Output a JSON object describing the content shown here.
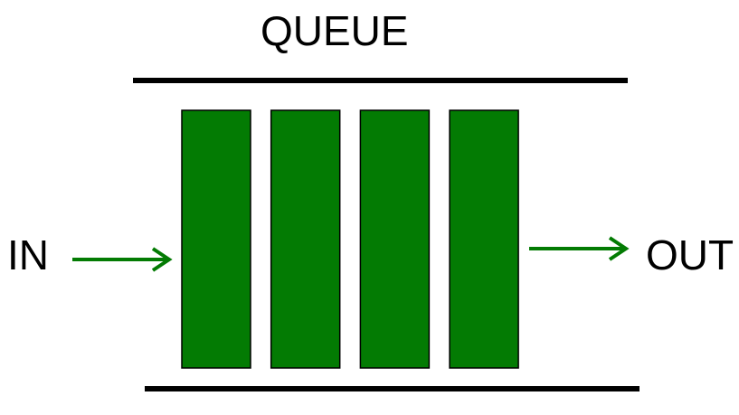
{
  "diagram": {
    "title": "QUEUE",
    "in_label": "IN",
    "out_label": "OUT",
    "element_count": 4
  },
  "colors": {
    "element_fill": "#037b03",
    "element_stroke": "#000000",
    "arrow": "#037b03",
    "rail": "#000000",
    "text": "#000000",
    "background": "#ffffff"
  },
  "icons": {
    "in_arrow": "arrow-right-icon",
    "out_arrow": "arrow-right-icon"
  }
}
